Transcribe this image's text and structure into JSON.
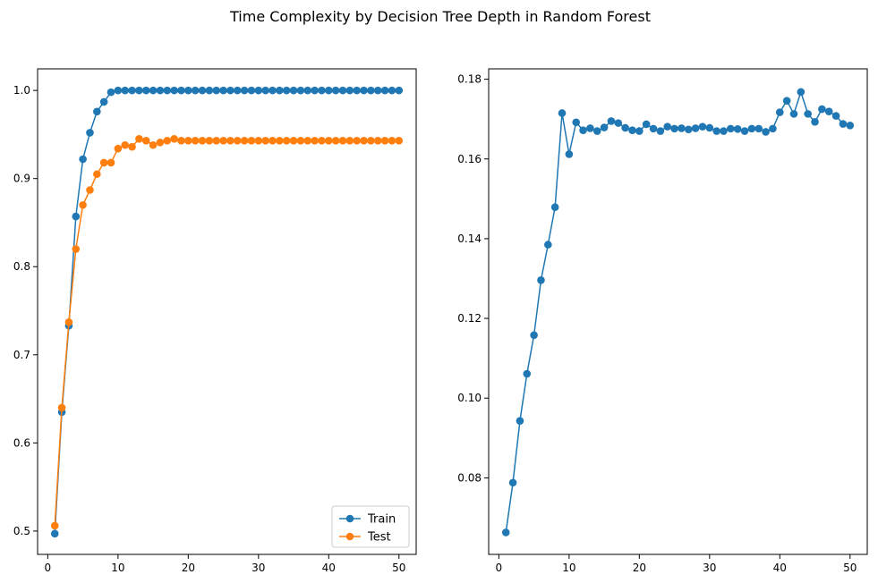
{
  "figure": {
    "title": "Time Complexity by Decision Tree Depth in Random Forest"
  },
  "chart_data": [
    {
      "type": "line",
      "xlabel": "",
      "ylabel": "",
      "xlim": [
        -1.45,
        52.45
      ],
      "ylim": [
        0.4735,
        1.0245
      ],
      "grid": false,
      "legend_position": "lower-right",
      "x_ticks": [
        0,
        10,
        20,
        30,
        40,
        50
      ],
      "y_ticks": [
        0.5,
        0.6,
        0.7,
        0.8,
        0.9,
        1.0
      ],
      "x_tick_labels": [
        "0",
        "10",
        "20",
        "30",
        "40",
        "50"
      ],
      "y_tick_labels": [
        "0.5",
        "0.6",
        "0.7",
        "0.8",
        "0.9",
        "1.0"
      ],
      "x": [
        1,
        2,
        3,
        4,
        5,
        6,
        7,
        8,
        9,
        10,
        11,
        12,
        13,
        14,
        15,
        16,
        17,
        18,
        19,
        20,
        21,
        22,
        23,
        24,
        25,
        26,
        27,
        28,
        29,
        30,
        31,
        32,
        33,
        34,
        35,
        36,
        37,
        38,
        39,
        40,
        41,
        42,
        43,
        44,
        45,
        46,
        47,
        48,
        49,
        50
      ],
      "series": [
        {
          "name": "Train",
          "color": "#1f77b4",
          "values": [
            0.497,
            0.635,
            0.733,
            0.857,
            0.922,
            0.952,
            0.976,
            0.987,
            0.998,
            1.0,
            1.0,
            1.0,
            1.0,
            1.0,
            1.0,
            1.0,
            1.0,
            1.0,
            1.0,
            1.0,
            1.0,
            1.0,
            1.0,
            1.0,
            1.0,
            1.0,
            1.0,
            1.0,
            1.0,
            1.0,
            1.0,
            1.0,
            1.0,
            1.0,
            1.0,
            1.0,
            1.0,
            1.0,
            1.0,
            1.0,
            1.0,
            1.0,
            1.0,
            1.0,
            1.0,
            1.0,
            1.0,
            1.0,
            1.0,
            1.0
          ]
        },
        {
          "name": "Test",
          "color": "#ff7f0e",
          "values": [
            0.506,
            0.64,
            0.737,
            0.82,
            0.87,
            0.887,
            0.905,
            0.918,
            0.918,
            0.934,
            0.938,
            0.936,
            0.945,
            0.943,
            0.938,
            0.941,
            0.943,
            0.945,
            0.943,
            0.943,
            0.943,
            0.943,
            0.943,
            0.943,
            0.943,
            0.943,
            0.943,
            0.943,
            0.943,
            0.943,
            0.943,
            0.943,
            0.943,
            0.943,
            0.943,
            0.943,
            0.943,
            0.943,
            0.943,
            0.943,
            0.943,
            0.943,
            0.943,
            0.943,
            0.943,
            0.943,
            0.943,
            0.943,
            0.943,
            0.943
          ]
        }
      ]
    },
    {
      "type": "line",
      "xlabel": "",
      "ylabel": "",
      "xlim": [
        -1.45,
        52.45
      ],
      "ylim": [
        0.0608,
        0.1826
      ],
      "grid": false,
      "legend_position": "none",
      "x_ticks": [
        0,
        10,
        20,
        30,
        40,
        50
      ],
      "y_ticks": [
        0.08,
        0.1,
        0.12,
        0.14,
        0.16,
        0.18
      ],
      "x_tick_labels": [
        "0",
        "10",
        "20",
        "30",
        "40",
        "50"
      ],
      "y_tick_labels": [
        "0.08",
        "0.10",
        "0.12",
        "0.14",
        "0.16",
        "0.18"
      ],
      "x": [
        1,
        2,
        3,
        4,
        5,
        6,
        7,
        8,
        9,
        10,
        11,
        12,
        13,
        14,
        15,
        16,
        17,
        18,
        19,
        20,
        21,
        22,
        23,
        24,
        25,
        26,
        27,
        28,
        29,
        30,
        31,
        32,
        33,
        34,
        35,
        36,
        37,
        38,
        39,
        40,
        41,
        42,
        43,
        44,
        45,
        46,
        47,
        48,
        49,
        50
      ],
      "series": [
        {
          "color": "#1f77b4",
          "values": [
            0.0663,
            0.0788,
            0.0943,
            0.1061,
            0.1158,
            0.1296,
            0.1385,
            0.1479,
            0.1715,
            0.1612,
            0.1692,
            0.1672,
            0.1677,
            0.167,
            0.1679,
            0.1695,
            0.169,
            0.1678,
            0.1672,
            0.167,
            0.1687,
            0.1676,
            0.167,
            0.1681,
            0.1676,
            0.1677,
            0.1674,
            0.1677,
            0.1681,
            0.1678,
            0.167,
            0.167,
            0.1676,
            0.1675,
            0.167,
            0.1676,
            0.1676,
            0.1668,
            0.1676,
            0.1717,
            0.1746,
            0.1713,
            0.1768,
            0.1713,
            0.1693,
            0.1725,
            0.1719,
            0.1708,
            0.1688,
            0.1684
          ]
        }
      ]
    }
  ]
}
